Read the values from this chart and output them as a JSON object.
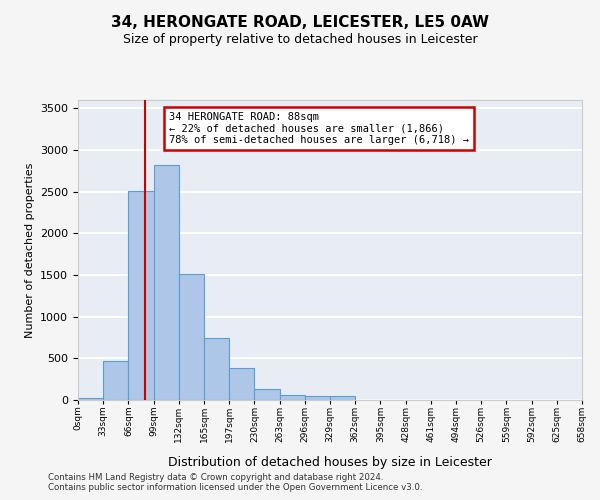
{
  "title": "34, HERONGATE ROAD, LEICESTER, LE5 0AW",
  "subtitle": "Size of property relative to detached houses in Leicester",
  "xlabel": "Distribution of detached houses by size in Leicester",
  "ylabel": "Number of detached properties",
  "bar_color": "#aec6e8",
  "bar_edge_color": "#5a9fd4",
  "background_color": "#e8edf5",
  "grid_color": "#ffffff",
  "bin_labels": [
    "0sqm",
    "33sqm",
    "66sqm",
    "99sqm",
    "132sqm",
    "165sqm",
    "197sqm",
    "230sqm",
    "263sqm",
    "296sqm",
    "329sqm",
    "362sqm",
    "395sqm",
    "428sqm",
    "461sqm",
    "494sqm",
    "526sqm",
    "559sqm",
    "592sqm",
    "625sqm",
    "658sqm"
  ],
  "bar_values": [
    20,
    470,
    2510,
    2820,
    1510,
    745,
    390,
    135,
    65,
    50,
    50,
    0,
    0,
    0,
    0,
    0,
    0,
    0,
    0,
    0
  ],
  "ylim": [
    0,
    3600
  ],
  "yticks": [
    0,
    500,
    1000,
    1500,
    2000,
    2500,
    3000,
    3500
  ],
  "property_line_x": 2.67,
  "annotation_text": "34 HERONGATE ROAD: 88sqm\n← 22% of detached houses are smaller (1,866)\n78% of semi-detached houses are larger (6,718) →",
  "annotation_box_color": "#ffffff",
  "annotation_edge_color": "#cc0000",
  "line_color": "#cc0000",
  "fig_bg_color": "#f5f5f5",
  "footer_line1": "Contains HM Land Registry data © Crown copyright and database right 2024.",
  "footer_line2": "Contains public sector information licensed under the Open Government Licence v3.0."
}
